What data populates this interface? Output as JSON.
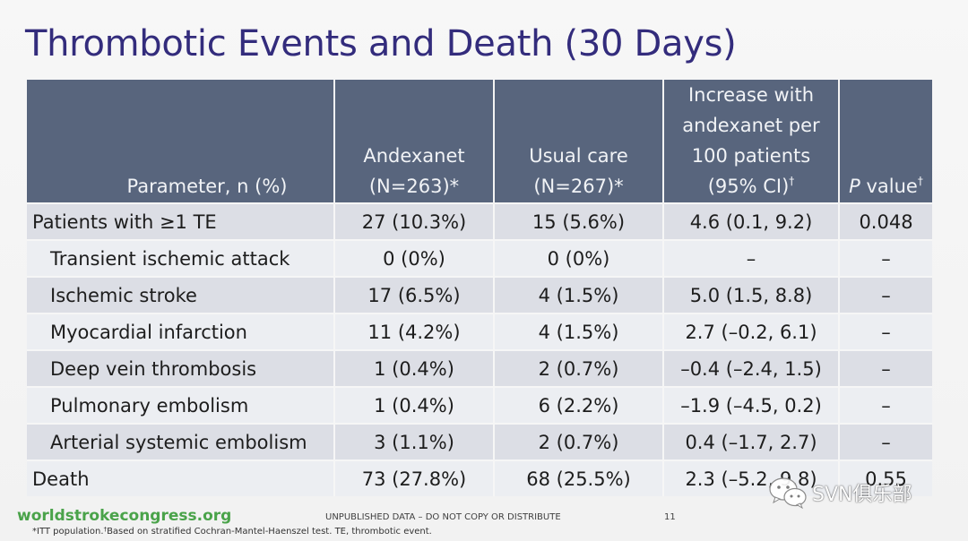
{
  "title": "Thrombotic Events and Death (30 Days)",
  "table": {
    "headers": {
      "parameter": "Parameter, n (%)",
      "andexanet_line1": "Andexanet",
      "andexanet_line2": "(N=263)*",
      "usual_care_line1": "Usual care",
      "usual_care_line2": "(N=267)*",
      "increase_line1": "Increase with",
      "increase_line2": "andexanet per",
      "increase_line3": "100 patients",
      "increase_line4": "(95% CI)",
      "increase_sup": "†",
      "pvalue_italic": "P",
      "pvalue_rest": " value",
      "pvalue_sup": "†"
    },
    "rows": [
      {
        "label": "Patients with ≥1 TE",
        "andexanet": "27 (10.3%)",
        "usual_care": "15 (5.6%)",
        "increase": "4.6 (0.1, 9.2)",
        "p_value": "0.048"
      },
      {
        "label": "Transient ischemic attack",
        "andexanet": "0 (0%)",
        "usual_care": "0 (0%)",
        "increase": "–",
        "p_value": "–"
      },
      {
        "label": "Ischemic stroke",
        "andexanet": "17 (6.5%)",
        "usual_care": "4 (1.5%)",
        "increase": "5.0 (1.5, 8.8)",
        "p_value": "–"
      },
      {
        "label": "Myocardial infarction",
        "andexanet": "11 (4.2%)",
        "usual_care": "4 (1.5%)",
        "increase": "2.7 (–0.2, 6.1)",
        "p_value": "–"
      },
      {
        "label": "Deep vein thrombosis",
        "andexanet": "1 (0.4%)",
        "usual_care": "2 (0.7%)",
        "increase": "–0.4 (–2.4, 1.5)",
        "p_value": "–"
      },
      {
        "label": "Pulmonary embolism",
        "andexanet": "1 (0.4%)",
        "usual_care": "6 (2.2%)",
        "increase": "–1.9 (–4.5, 0.2)",
        "p_value": "–"
      },
      {
        "label": "Arterial systemic embolism",
        "andexanet": "3 (1.1%)",
        "usual_care": "2 (0.7%)",
        "increase": "0.4 (–1.7, 2.7)",
        "p_value": "–"
      },
      {
        "label": "Death",
        "andexanet": "73 (27.8%)",
        "usual_care": "68 (25.5%)",
        "increase": "2.3 (–5.2, 9.8)",
        "p_value": "0.55"
      }
    ]
  },
  "footer": {
    "logo": "worldstrokecongress.org",
    "notice": "UNPUBLISHED DATA – DO NOT COPY OR DISTRIBUTE",
    "page_number": "11",
    "footnote_a": "*ITT population.",
    "footnote_sup": "†",
    "footnote_b": "Based on stratified Cochran-Mantel-Haenszel test. TE, thrombotic event."
  },
  "watermark": {
    "text": "SVN俱乐部",
    "icon": "wechat-chat-bubbles-icon"
  },
  "colors": {
    "title": "#332c7c",
    "header_bg": "#58657d",
    "row_dark": "#dcdee5",
    "row_light": "#eceef2",
    "logo_green": "#4aa34a"
  }
}
